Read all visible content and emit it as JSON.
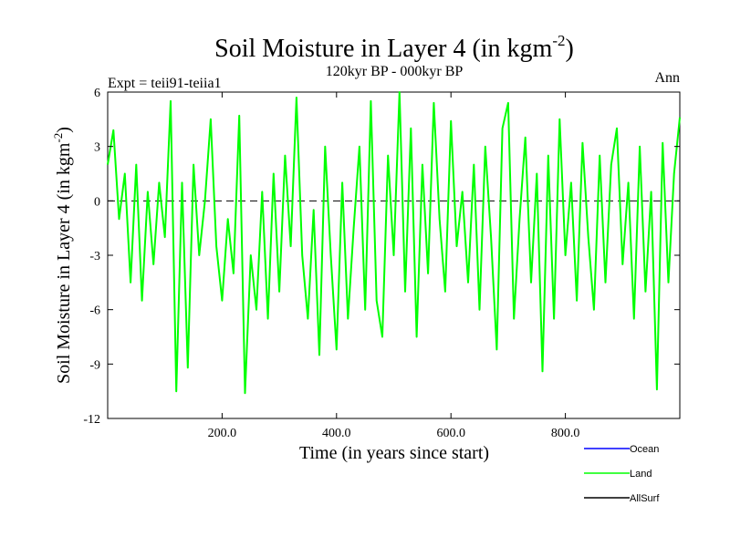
{
  "chart_data": {
    "type": "line",
    "title": {
      "main": "Soil Moisture in Layer 4 (in kgm",
      "superscript": "-2",
      "close": ")"
    },
    "subtitle": "120kyr BP - 000kyr BP",
    "annotation_left": "Expt = teii91-teiia1",
    "annotation_right": "Ann",
    "xlabel": "Time (in years since start)",
    "ylabel": {
      "main": "Soil Moisture in Layer 4 (in kgm",
      "superscript": "-2",
      "close": ")"
    },
    "xlim": [
      0,
      1000
    ],
    "ylim": [
      -12,
      6
    ],
    "x_ticks": [
      200,
      400,
      600,
      800
    ],
    "x_tick_labels": [
      "200.0",
      "400.0",
      "600.0",
      "800.0"
    ],
    "y_ticks": [
      -12,
      -9,
      -6,
      -3,
      0,
      3,
      6
    ],
    "y_tick_labels": [
      "-12",
      "-9",
      "-6",
      "-3",
      "0",
      "3",
      "6"
    ],
    "reference_line": {
      "y": 0,
      "style": "dashed"
    },
    "legend": {
      "placement": "bottom-right",
      "entries": [
        {
          "name": "Ocean",
          "color": "#0000ff"
        },
        {
          "name": "Land",
          "color": "#00ff00"
        },
        {
          "name": "AllSurf",
          "color": "#000000"
        }
      ]
    },
    "series": [
      {
        "name": "Land",
        "color": "#00ff00",
        "x": [
          0,
          10,
          20,
          30,
          40,
          50,
          60,
          70,
          80,
          90,
          100,
          110,
          120,
          130,
          140,
          150,
          160,
          170,
          180,
          190,
          200,
          210,
          220,
          230,
          240,
          250,
          260,
          270,
          280,
          290,
          300,
          310,
          320,
          330,
          340,
          350,
          360,
          370,
          380,
          390,
          400,
          410,
          420,
          430,
          440,
          450,
          460,
          470,
          480,
          490,
          500,
          510,
          520,
          530,
          540,
          550,
          560,
          570,
          580,
          590,
          600,
          610,
          620,
          630,
          640,
          650,
          660,
          670,
          680,
          690,
          700,
          710,
          720,
          730,
          740,
          750,
          760,
          770,
          780,
          790,
          800,
          810,
          820,
          830,
          840,
          850,
          860,
          870,
          880,
          890,
          900,
          910,
          920,
          930,
          940,
          950,
          960,
          970,
          980,
          990,
          1000
        ],
        "y": [
          2.0,
          3.9,
          -1.0,
          1.5,
          -4.5,
          2.0,
          -5.5,
          0.5,
          -3.5,
          1.0,
          -2.0,
          5.5,
          -10.5,
          1.0,
          -9.2,
          2.0,
          -3.0,
          0.0,
          4.5,
          -2.5,
          -5.5,
          -1.0,
          -4.0,
          4.7,
          -10.6,
          -3.0,
          -6.0,
          0.5,
          -6.5,
          1.5,
          -5.0,
          2.5,
          -2.5,
          5.7,
          -3.0,
          -6.5,
          -0.5,
          -8.5,
          3.0,
          -3.0,
          -8.2,
          1.0,
          -6.5,
          -1.5,
          3.0,
          -6.0,
          5.5,
          -5.5,
          -7.5,
          2.5,
          -3.0,
          6.0,
          -5.0,
          4.0,
          -7.5,
          2.0,
          -4.0,
          5.4,
          -1.0,
          -5.0,
          4.4,
          -2.5,
          0.5,
          -4.5,
          2.0,
          -6.0,
          3.0,
          -2.0,
          -8.2,
          4.0,
          5.4,
          -6.5,
          -1.0,
          3.5,
          -4.5,
          1.5,
          -9.4,
          2.5,
          -6.5,
          4.5,
          -3.0,
          1.0,
          -5.5,
          3.2,
          -2.0,
          -6.0,
          2.5,
          -4.5,
          2.0,
          4.0,
          -3.5,
          1.0,
          -6.5,
          3.0,
          -5.0,
          0.5,
          -10.4,
          3.2,
          -4.5,
          1.5,
          4.6
        ]
      }
    ]
  }
}
